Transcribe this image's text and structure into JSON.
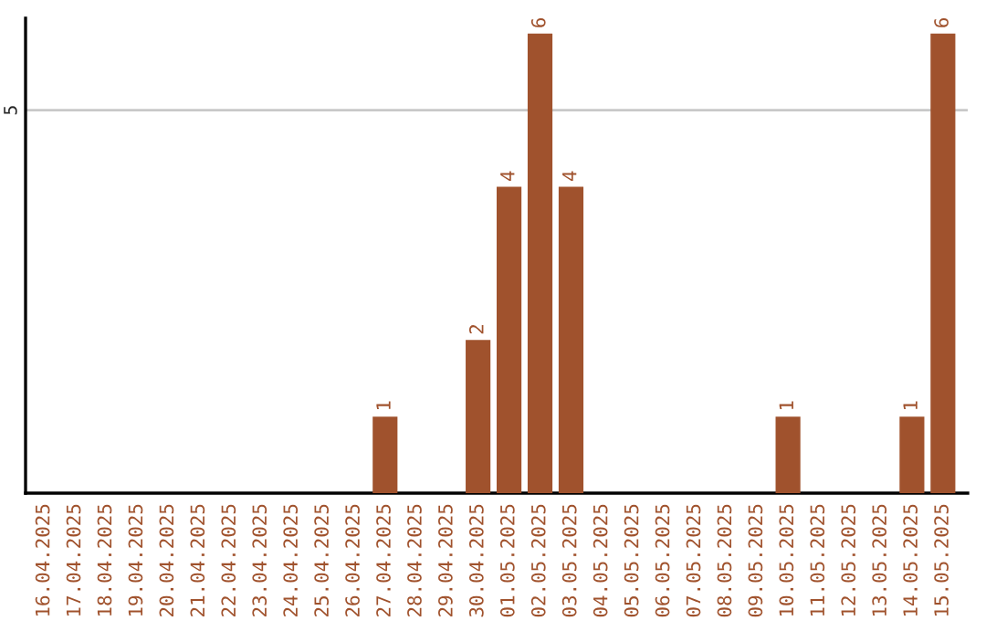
{
  "chart_data": {
    "type": "bar",
    "categories": [
      "16.04.2025",
      "17.04.2025",
      "18.04.2025",
      "19.04.2025",
      "20.04.2025",
      "21.04.2025",
      "22.04.2025",
      "23.04.2025",
      "24.04.2025",
      "25.04.2025",
      "26.04.2025",
      "27.04.2025",
      "28.04.2025",
      "29.04.2025",
      "30.04.2025",
      "01.05.2025",
      "02.05.2025",
      "03.05.2025",
      "04.05.2025",
      "05.05.2025",
      "06.05.2025",
      "07.05.2025",
      "08.05.2025",
      "09.05.2025",
      "10.05.2025",
      "11.05.2025",
      "12.05.2025",
      "13.05.2025",
      "14.05.2025",
      "15.05.2025"
    ],
    "values": [
      0,
      0,
      0,
      0,
      0,
      0,
      0,
      0,
      0,
      0,
      0,
      1,
      0,
      0,
      2,
      4,
      6,
      4,
      0,
      0,
      0,
      0,
      0,
      0,
      1,
      0,
      0,
      0,
      1,
      6
    ],
    "value_labels": [
      null,
      null,
      null,
      null,
      null,
      null,
      null,
      null,
      null,
      null,
      null,
      "1",
      null,
      null,
      "2",
      "4",
      "6",
      "4",
      null,
      null,
      null,
      null,
      null,
      null,
      "1",
      null,
      null,
      null,
      "1",
      "6"
    ],
    "color": "#a0522d",
    "ylim": [
      0,
      6.2
    ],
    "yticks": [
      5
    ],
    "grid": "y",
    "legend": false
  }
}
